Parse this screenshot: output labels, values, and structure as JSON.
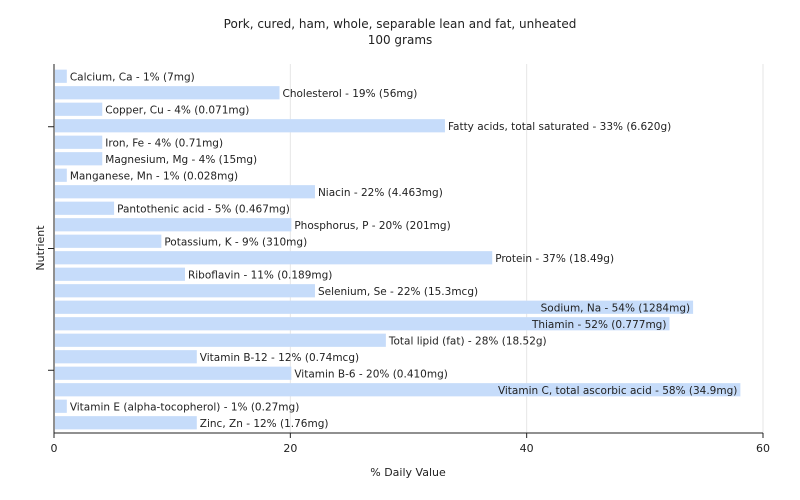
{
  "chart_data": {
    "type": "bar",
    "orientation": "horizontal",
    "title": "Pork, cured, ham, whole, separable lean and fat, unheated",
    "subtitle": "100 grams",
    "xlabel": "% Daily Value",
    "ylabel": "Nutrient",
    "xlim": [
      0,
      60
    ],
    "xticks": [
      "0",
      "20",
      "40",
      "60"
    ],
    "grid": true,
    "colors": {
      "bar": "#c6dcfa",
      "frame": "#222222",
      "grid": "#e6e6e6"
    },
    "categories": [
      "Calcium, Ca",
      "Cholesterol",
      "Copper, Cu",
      "Fatty acids, total saturated",
      "Iron, Fe",
      "Magnesium, Mg",
      "Manganese, Mn",
      "Niacin",
      "Pantothenic acid",
      "Phosphorus, P",
      "Potassium, K",
      "Protein",
      "Riboflavin",
      "Selenium, Se",
      "Sodium, Na",
      "Thiamin",
      "Total lipid (fat)",
      "Vitamin B-12",
      "Vitamin B-6",
      "Vitamin C, total ascorbic acid",
      "Vitamin E (alpha-tocopherol)",
      "Zinc, Zn"
    ],
    "values": [
      1,
      19,
      4,
      33,
      4,
      4,
      1,
      22,
      5,
      20,
      9,
      37,
      11,
      22,
      54,
      52,
      28,
      12,
      20,
      58,
      1,
      12
    ],
    "labels": [
      "Calcium, Ca - 1% (7mg)",
      "Cholesterol - 19% (56mg)",
      "Copper, Cu - 4% (0.071mg)",
      "Fatty acids, total saturated - 33% (6.620g)",
      "Iron, Fe - 4% (0.71mg)",
      "Magnesium, Mg - 4% (15mg)",
      "Manganese, Mn - 1% (0.028mg)",
      "Niacin - 22% (4.463mg)",
      "Pantothenic acid - 5% (0.467mg)",
      "Phosphorus, P - 20% (201mg)",
      "Potassium, K - 9% (310mg)",
      "Protein - 37% (18.49g)",
      "Riboflavin - 11% (0.189mg)",
      "Selenium, Se - 22% (15.3mcg)",
      "Sodium, Na - 54% (1284mg)",
      "Thiamin - 52% (0.777mg)",
      "Total lipid (fat) - 28% (18.52g)",
      "Vitamin B-12 - 12% (0.74mcg)",
      "Vitamin B-6 - 20% (0.410mg)",
      "Vitamin C, total ascorbic acid - 58% (34.9mg)",
      "Vitamin E (alpha-tocopherol) - 1% (0.27mg)",
      "Zinc, Zn - 12% (1.76mg)"
    ]
  }
}
